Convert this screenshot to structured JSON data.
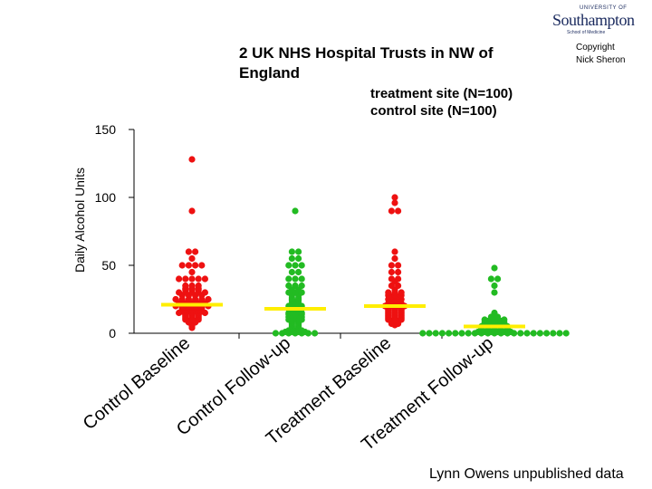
{
  "header": {
    "logo_university": "UNIVERSITY OF",
    "logo_name": "Southampton",
    "logo_school": "School of Medicine",
    "title_line1": "2 UK NHS Hospital Trusts in NW of",
    "title_line2": "England",
    "copyright_line1": "Copyright",
    "copyright_line2": "Nick Sheron"
  },
  "footer": {
    "credit": "Lynn Owens unpublished data"
  },
  "colors": {
    "control": "#ee1111",
    "treatment": "#22bb22",
    "median": "#ffee00",
    "axis": "#000000"
  },
  "chart_data": {
    "type": "scatter",
    "subtype": "dot-strip",
    "ylabel": "Daily Alcohol Units",
    "ylim": [
      0,
      150
    ],
    "yticks": [
      0,
      50,
      100,
      150
    ],
    "legend": {
      "position": "top-right",
      "entries": [
        "treatment site (N=100)",
        "control site (N=100)"
      ]
    },
    "categories": [
      "Control Baseline",
      "Control Follow-up",
      "Treatment Baseline",
      "Treatment Follow-up"
    ],
    "series": [
      {
        "name": "Control Baseline",
        "color_key": "control",
        "median": 21,
        "values": [
          128,
          90,
          60,
          60,
          55,
          50,
          50,
          50,
          50,
          45,
          40,
          40,
          40,
          40,
          40,
          35,
          35,
          35,
          33,
          33,
          33,
          32,
          32,
          32,
          30,
          30,
          30,
          30,
          30,
          28,
          28,
          28,
          28,
          25,
          25,
          25,
          25,
          25,
          25,
          24,
          24,
          24,
          24,
          22,
          22,
          22,
          22,
          22,
          21,
          21,
          21,
          20,
          20,
          20,
          20,
          20,
          20,
          19,
          19,
          19,
          19,
          18,
          18,
          18,
          18,
          17,
          17,
          17,
          16,
          16,
          16,
          16,
          15,
          15,
          15,
          15,
          15,
          14,
          14,
          14,
          13,
          13,
          13,
          12,
          12,
          12,
          11,
          11,
          11,
          10,
          10,
          10,
          9,
          9,
          8,
          8,
          7,
          6,
          5,
          4
        ]
      },
      {
        "name": "Control Follow-up",
        "color_key": "treatment",
        "median": 18,
        "values": [
          90,
          60,
          60,
          55,
          55,
          50,
          50,
          50,
          45,
          45,
          40,
          40,
          40,
          35,
          35,
          35,
          32,
          32,
          30,
          30,
          30,
          28,
          28,
          26,
          26,
          25,
          25,
          24,
          24,
          23,
          22,
          22,
          21,
          21,
          20,
          20,
          20,
          19,
          19,
          18,
          18,
          18,
          17,
          17,
          16,
          16,
          15,
          15,
          15,
          14,
          14,
          14,
          13,
          13,
          12,
          12,
          12,
          11,
          11,
          10,
          10,
          10,
          9,
          9,
          8,
          8,
          7,
          7,
          6,
          6,
          5,
          5,
          4,
          4,
          3,
          3,
          2,
          2,
          2,
          1,
          1,
          1,
          1,
          0,
          0,
          0,
          0,
          0,
          0,
          0
        ]
      },
      {
        "name": "Treatment Baseline",
        "color_key": "control",
        "median": 20,
        "values": [
          100,
          96,
          90,
          90,
          60,
          55,
          50,
          50,
          45,
          45,
          40,
          40,
          38,
          35,
          35,
          32,
          30,
          30,
          30,
          28,
          28,
          28,
          27,
          27,
          26,
          26,
          25,
          25,
          25,
          24,
          24,
          23,
          23,
          22,
          22,
          22,
          21,
          21,
          21,
          20,
          20,
          20,
          20,
          19,
          19,
          19,
          18,
          18,
          18,
          17,
          17,
          17,
          16,
          16,
          16,
          15,
          15,
          15,
          14,
          14,
          14,
          13,
          13,
          13,
          12,
          12,
          12,
          11,
          11,
          11,
          10,
          10,
          10,
          9,
          9,
          8,
          8,
          7,
          7,
          6
        ]
      },
      {
        "name": "Treatment Follow-up",
        "color_key": "treatment",
        "median": 5,
        "values": [
          48,
          40,
          40,
          35,
          30,
          15,
          14,
          13,
          12,
          12,
          11,
          11,
          10,
          10,
          10,
          10,
          9,
          9,
          9,
          8,
          8,
          8,
          8,
          7,
          7,
          7,
          7,
          6,
          6,
          6,
          6,
          5,
          5,
          5,
          5,
          5,
          4,
          4,
          4,
          4,
          4,
          3,
          3,
          3,
          3,
          3,
          2,
          2,
          2,
          2,
          2,
          1,
          1,
          1,
          1,
          1,
          1,
          0,
          0,
          0,
          0,
          0,
          0,
          0,
          0,
          0,
          0,
          0,
          0,
          0,
          0,
          0,
          0,
          0,
          0,
          0,
          0,
          0,
          0,
          0
        ]
      }
    ]
  }
}
